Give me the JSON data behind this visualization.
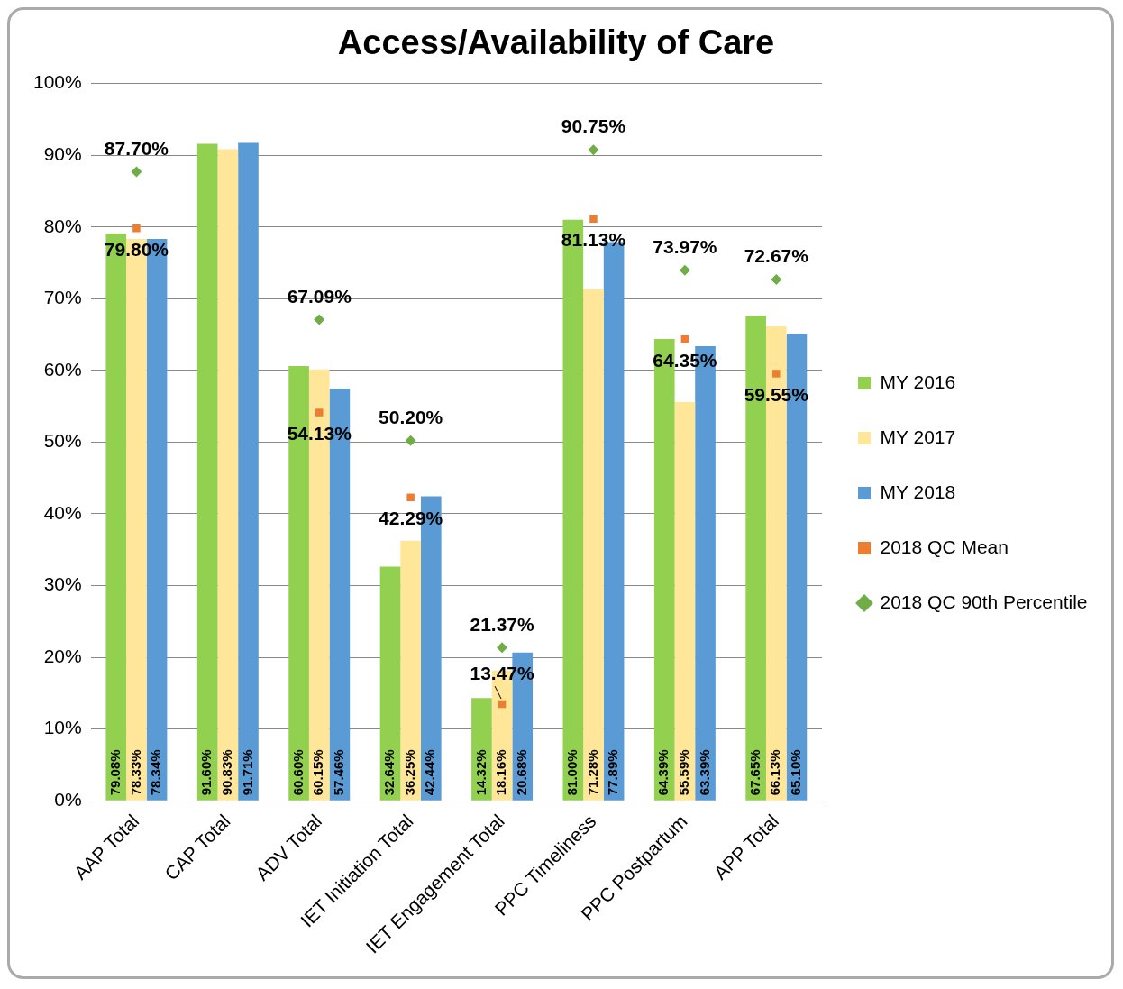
{
  "chart_data": {
    "type": "bar",
    "title": "Access/Availability of Care",
    "categories": [
      "AAP Total",
      "CAP Total",
      "ADV Total",
      "IET Initiation Total",
      "IET Engagement Total",
      "PPC Timeliness",
      "PPC Postpartum",
      "APP Total"
    ],
    "series": [
      {
        "name": "MY 2016",
        "color": "#92d050",
        "values": [
          79.08,
          91.6,
          60.6,
          32.64,
          14.32,
          81.0,
          64.39,
          67.65
        ],
        "value_labels": [
          "79.08%",
          "91.60%",
          "60.60%",
          "32.64%",
          "14.32%",
          "81.00%",
          "64.39%",
          "67.65%"
        ]
      },
      {
        "name": "MY 2017",
        "color": "#ffe699",
        "values": [
          78.33,
          90.83,
          60.15,
          36.25,
          18.16,
          71.28,
          55.59,
          66.13
        ],
        "value_labels": [
          "78.33%",
          "90.83%",
          "60.15%",
          "36.25%",
          "18.16%",
          "71.28%",
          "55.59%",
          "66.13%"
        ]
      },
      {
        "name": "MY 2018",
        "color": "#5b9bd5",
        "values": [
          78.34,
          91.71,
          57.46,
          42.44,
          20.68,
          77.89,
          63.39,
          65.1
        ],
        "value_labels": [
          "78.34%",
          "91.71%",
          "57.46%",
          "42.44%",
          "20.68%",
          "77.89%",
          "63.39%",
          "65.10%"
        ]
      },
      {
        "name": "2018 QC Mean",
        "type": "scatter",
        "marker": "square",
        "color": "#ed7d31",
        "values": [
          79.8,
          null,
          54.13,
          42.29,
          13.47,
          81.13,
          64.35,
          59.55
        ],
        "value_labels": [
          "79.80%",
          null,
          "54.13%",
          "42.29%",
          "13.47%",
          "81.13%",
          "64.35%",
          "59.55%"
        ]
      },
      {
        "name": "2018 QC 90th Percentile",
        "type": "scatter",
        "marker": "diamond",
        "color": "#70ad47",
        "values": [
          87.7,
          null,
          67.09,
          50.2,
          21.37,
          90.75,
          73.97,
          72.67
        ],
        "value_labels": [
          "87.70%",
          null,
          "67.09%",
          "50.20%",
          "21.37%",
          "90.75%",
          "73.97%",
          "72.67%"
        ]
      }
    ],
    "ylim": [
      0,
      100
    ],
    "yticks": [
      {
        "value": 0,
        "label": "0%"
      },
      {
        "value": 10,
        "label": "10%"
      },
      {
        "value": 20,
        "label": "20%"
      },
      {
        "value": 30,
        "label": "30%"
      },
      {
        "value": 40,
        "label": "40%"
      },
      {
        "value": 50,
        "label": "50%"
      },
      {
        "value": 60,
        "label": "60%"
      },
      {
        "value": 70,
        "label": "70%"
      },
      {
        "value": 80,
        "label": "80%"
      },
      {
        "value": 90,
        "label": "90%"
      },
      {
        "value": 100,
        "label": "100%"
      }
    ],
    "grid": "y",
    "legend": "right"
  }
}
